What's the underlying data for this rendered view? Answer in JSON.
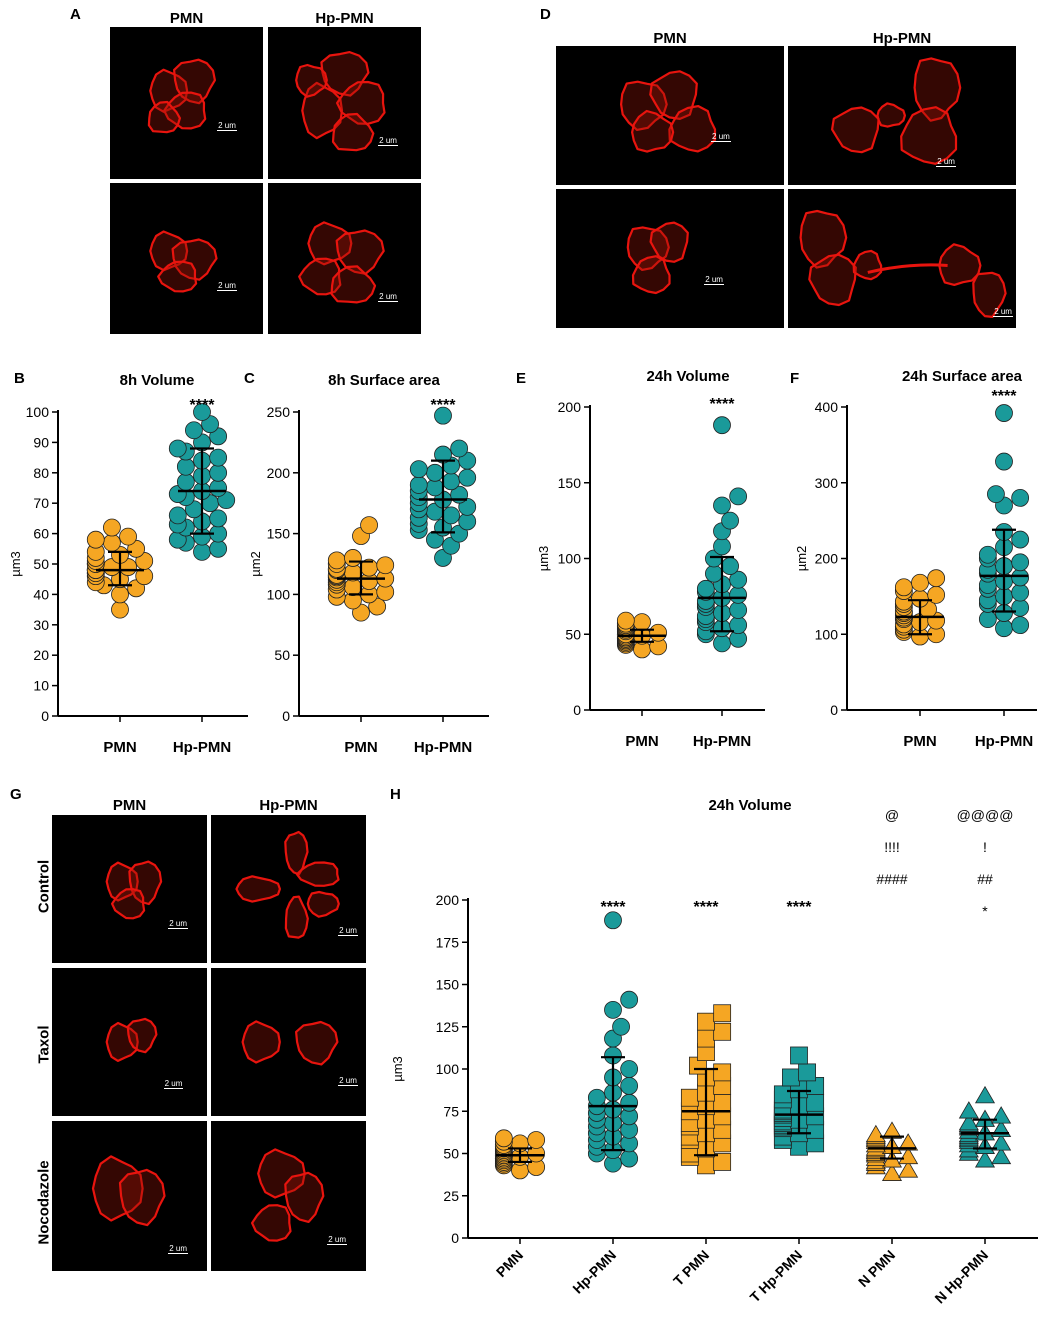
{
  "panels": {
    "A": {
      "letter": "A",
      "col_labels": [
        "PMN",
        "Hp-PMN"
      ],
      "scale_label": "2 um"
    },
    "D": {
      "letter": "D",
      "col_labels": [
        "PMN",
        "Hp-PMN"
      ],
      "scale_label": "2 um"
    },
    "G": {
      "letter": "G",
      "col_labels": [
        "PMN",
        "Hp-PMN"
      ],
      "row_labels": [
        "Control",
        "Taxol",
        "Nocodazole"
      ],
      "scale_label": "2 um"
    }
  },
  "colors": {
    "pmn": "#F5A623",
    "hp": "#1A9A9A",
    "cell": "#E8140E"
  },
  "chart_data": [
    {
      "id": "B",
      "letter": "B",
      "type": "scatter",
      "title": "8h Volume",
      "ylabel": "µm3",
      "ylim": [
        0,
        100
      ],
      "yticks": [
        0,
        10,
        20,
        30,
        40,
        50,
        60,
        70,
        80,
        90,
        100
      ],
      "categories": [
        "PMN",
        "Hp-PMN"
      ],
      "series": [
        {
          "name": "PMN",
          "marker": "circle",
          "color": "#F5A623",
          "mean": 48,
          "sd_low": 43,
          "sd_high": 54,
          "values": [
            35,
            40,
            42,
            43,
            44,
            45,
            46,
            46,
            47,
            47,
            48,
            48,
            48,
            49,
            49,
            50,
            50,
            51,
            51,
            52,
            53,
            54,
            55,
            57,
            58,
            59,
            62
          ]
        },
        {
          "name": "Hp-PMN",
          "marker": "circle",
          "color": "#1A9A9A",
          "mean": 74,
          "sd_low": 60,
          "sd_high": 88,
          "values": [
            54,
            55,
            57,
            58,
            59,
            60,
            62,
            63,
            64,
            65,
            66,
            68,
            70,
            71,
            72,
            73,
            74,
            75,
            77,
            79,
            80,
            82,
            84,
            85,
            87,
            88,
            90,
            92,
            94,
            96,
            100
          ]
        }
      ],
      "annotations": [
        {
          "category": "Hp-PMN",
          "text": "****"
        }
      ]
    },
    {
      "id": "C",
      "letter": "C",
      "type": "scatter",
      "title": "8h Surface area",
      "ylabel": "µm2",
      "ylim": [
        0,
        250
      ],
      "yticks": [
        0,
        50,
        100,
        150,
        200,
        250
      ],
      "categories": [
        "PMN",
        "Hp-PMN"
      ],
      "series": [
        {
          "name": "PMN",
          "marker": "circle",
          "color": "#F5A623",
          "mean": 113,
          "sd_low": 100,
          "sd_high": 127,
          "values": [
            85,
            90,
            95,
            98,
            100,
            102,
            104,
            106,
            108,
            110,
            111,
            112,
            113,
            114,
            115,
            116,
            118,
            120,
            121,
            122,
            124,
            125,
            128,
            130,
            148,
            157
          ]
        },
        {
          "name": "Hp-PMN",
          "marker": "circle",
          "color": "#1A9A9A",
          "mean": 178,
          "sd_low": 151,
          "sd_high": 210,
          "values": [
            130,
            140,
            145,
            150,
            153,
            155,
            158,
            160,
            163,
            165,
            168,
            170,
            172,
            175,
            178,
            180,
            182,
            185,
            188,
            190,
            193,
            196,
            200,
            203,
            206,
            210,
            215,
            220,
            247
          ]
        }
      ],
      "annotations": [
        {
          "category": "Hp-PMN",
          "text": "****"
        }
      ]
    },
    {
      "id": "E",
      "letter": "E",
      "type": "scatter",
      "title": "24h Volume",
      "ylabel": "µm3",
      "ylim": [
        0,
        200
      ],
      "yticks": [
        0,
        50,
        100,
        150,
        200
      ],
      "categories": [
        "PMN",
        "Hp-PMN"
      ],
      "series": [
        {
          "name": "PMN",
          "marker": "circle",
          "color": "#F5A623",
          "mean": 49,
          "sd_low": 45,
          "sd_high": 53,
          "values": [
            40,
            42,
            43,
            44,
            45,
            46,
            47,
            47,
            48,
            48,
            49,
            49,
            50,
            50,
            51,
            52,
            53,
            54,
            55,
            56,
            57,
            58,
            59
          ]
        },
        {
          "name": "Hp-PMN",
          "marker": "circle",
          "color": "#1A9A9A",
          "mean": 74,
          "sd_low": 52,
          "sd_high": 101,
          "values": [
            44,
            47,
            50,
            52,
            54,
            56,
            58,
            60,
            62,
            64,
            66,
            68,
            70,
            72,
            74,
            76,
            78,
            80,
            83,
            86,
            90,
            95,
            100,
            108,
            118,
            125,
            135,
            141,
            188
          ]
        }
      ],
      "annotations": [
        {
          "category": "Hp-PMN",
          "text": "****"
        }
      ]
    },
    {
      "id": "F",
      "letter": "F",
      "type": "scatter",
      "title": "24h Surface area",
      "ylabel": "µm2",
      "ylim": [
        0,
        400
      ],
      "yticks": [
        0,
        100,
        200,
        300,
        400
      ],
      "categories": [
        "PMN",
        "Hp-PMN"
      ],
      "series": [
        {
          "name": "PMN",
          "marker": "circle",
          "color": "#F5A623",
          "mean": 123,
          "sd_low": 100,
          "sd_high": 145,
          "values": [
            97,
            100,
            103,
            106,
            110,
            113,
            116,
            118,
            120,
            122,
            125,
            128,
            130,
            133,
            136,
            140,
            143,
            147,
            152,
            157,
            162,
            168,
            174
          ]
        },
        {
          "name": "Hp-PMN",
          "marker": "circle",
          "color": "#1A9A9A",
          "mean": 177,
          "sd_low": 130,
          "sd_high": 238,
          "values": [
            108,
            112,
            120,
            128,
            135,
            140,
            145,
            150,
            155,
            160,
            165,
            170,
            175,
            180,
            185,
            190,
            195,
            200,
            205,
            215,
            225,
            235,
            270,
            280,
            285,
            328,
            392
          ]
        }
      ],
      "annotations": [
        {
          "category": "Hp-PMN",
          "text": "****"
        }
      ]
    },
    {
      "id": "H",
      "letter": "H",
      "type": "scatter",
      "title": "24h Volume",
      "ylabel": "µm3",
      "ylim": [
        0,
        200
      ],
      "yticks": [
        0,
        25,
        50,
        75,
        100,
        125,
        150,
        175,
        200
      ],
      "categories": [
        "PMN",
        "Hp-PMN",
        "T PMN",
        "T Hp-PMN",
        "N PMN",
        "N Hp-PMN"
      ],
      "series": [
        {
          "name": "PMN",
          "marker": "circle",
          "color": "#F5A623",
          "mean": 49,
          "sd_low": 45,
          "sd_high": 53,
          "values": [
            40,
            42,
            43,
            44,
            45,
            46,
            47,
            47,
            48,
            48,
            49,
            49,
            50,
            50,
            51,
            52,
            53,
            54,
            55,
            56,
            57,
            58,
            59
          ]
        },
        {
          "name": "Hp-PMN",
          "marker": "circle",
          "color": "#1A9A9A",
          "mean": 78,
          "sd_low": 52,
          "sd_high": 107,
          "values": [
            44,
            47,
            50,
            52,
            54,
            56,
            58,
            60,
            62,
            64,
            66,
            68,
            70,
            72,
            74,
            76,
            78,
            80,
            83,
            86,
            90,
            95,
            100,
            108,
            118,
            125,
            135,
            141,
            188
          ]
        },
        {
          "name": "T PMN",
          "marker": "square",
          "color": "#F5A623",
          "mean": 75,
          "sd_low": 49,
          "sd_high": 100,
          "values": [
            43,
            45,
            48,
            50,
            53,
            56,
            58,
            60,
            62,
            64,
            66,
            68,
            70,
            72,
            75,
            78,
            80,
            83,
            86,
            90,
            95,
            98,
            102,
            110,
            118,
            122,
            128,
            133
          ]
        },
        {
          "name": "T Hp-PMN",
          "marker": "square",
          "color": "#1A9A9A",
          "mean": 73,
          "sd_low": 62,
          "sd_high": 87,
          "values": [
            54,
            56,
            58,
            60,
            62,
            64,
            65,
            66,
            67,
            68,
            69,
            70,
            71,
            72,
            73,
            74,
            75,
            76,
            78,
            80,
            82,
            85,
            88,
            90,
            95,
            98,
            108
          ]
        },
        {
          "name": "N PMN",
          "marker": "triangle",
          "color": "#F5A623",
          "mean": 53,
          "sd_low": 47,
          "sd_high": 60,
          "values": [
            38,
            40,
            42,
            44,
            45,
            46,
            47,
            48,
            49,
            50,
            51,
            52,
            53,
            54,
            55,
            56,
            57,
            58,
            59,
            60,
            61,
            63
          ]
        },
        {
          "name": "N Hp-PMN",
          "marker": "triangle",
          "color": "#1A9A9A",
          "mean": 62,
          "sd_low": 53,
          "sd_high": 70,
          "values": [
            46,
            48,
            50,
            52,
            54,
            55,
            56,
            57,
            58,
            59,
            60,
            61,
            62,
            63,
            64,
            65,
            66,
            67,
            68,
            70,
            72,
            75,
            84
          ]
        }
      ],
      "annotations": [
        {
          "category": "Hp-PMN",
          "text": "****"
        },
        {
          "category": "T PMN",
          "text": "****"
        },
        {
          "category": "T Hp-PMN",
          "text": "****"
        },
        {
          "category": "N PMN",
          "lines": [
            "@",
            "!!!!",
            "####"
          ]
        },
        {
          "category": "N Hp-PMN",
          "lines": [
            "@@@@",
            "!",
            "##",
            "*"
          ]
        }
      ]
    }
  ]
}
